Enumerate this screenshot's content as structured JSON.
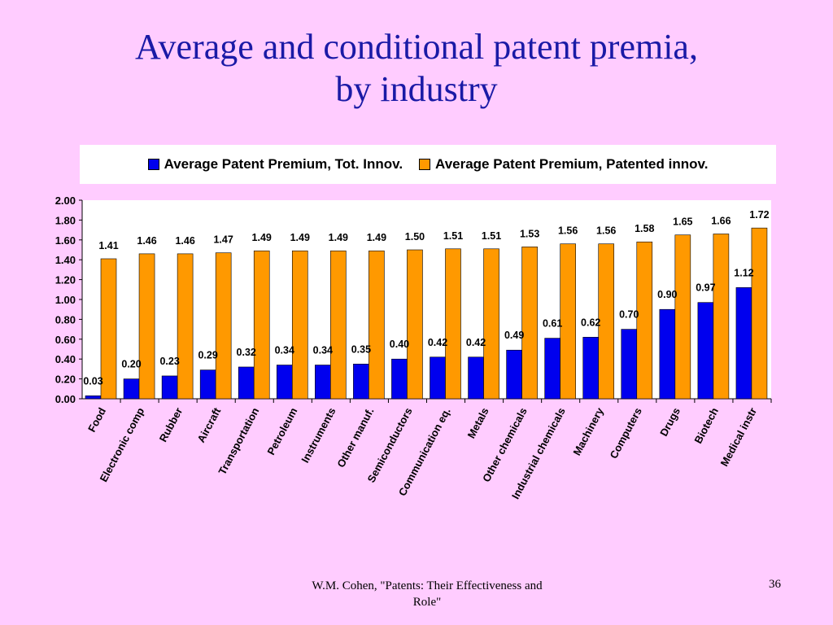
{
  "slide": {
    "title_line1": "Average and conditional patent premia,",
    "title_line2": "by industry",
    "footer": "W.M. Cohen, \"Patents: Their Effectiveness and Role\"",
    "page_number": "36"
  },
  "colors": {
    "background": "#ffccff",
    "title": "#1a1aa6",
    "series1": "#0000ee",
    "series2": "#ff9900"
  },
  "chart_data": {
    "type": "bar",
    "categories": [
      "Food",
      "Electronic comp",
      "Rubber",
      "Aircraft",
      "Transportation",
      "Petroleum",
      "Instruments",
      "Other manuf.",
      "Semiconductors",
      "Communication eq.",
      "Metals",
      "Other chemicals",
      "Industrial chemicals",
      "Machinery",
      "Computers",
      "Drugs",
      "Biotech",
      "Medical instr"
    ],
    "series": [
      {
        "name": "Average Patent Premium, Tot. Innov.",
        "color": "#0000ee",
        "values": [
          0.03,
          0.2,
          0.23,
          0.29,
          0.32,
          0.34,
          0.34,
          0.35,
          0.4,
          0.42,
          0.42,
          0.49,
          0.61,
          0.62,
          0.7,
          0.9,
          0.97,
          1.12
        ]
      },
      {
        "name": "Average Patent Premium, Patented innov.",
        "color": "#ff9900",
        "values": [
          1.41,
          1.46,
          1.46,
          1.47,
          1.49,
          1.49,
          1.49,
          1.49,
          1.5,
          1.51,
          1.51,
          1.53,
          1.56,
          1.56,
          1.58,
          1.65,
          1.66,
          1.72
        ]
      }
    ],
    "ylim": [
      0,
      2.0
    ],
    "yticks": [
      "0.00",
      "0.20",
      "0.40",
      "0.60",
      "0.80",
      "1.00",
      "1.20",
      "1.40",
      "1.60",
      "1.80",
      "2.00"
    ],
    "grid": false,
    "legend_position": "top",
    "xlabel": "",
    "ylabel": ""
  }
}
